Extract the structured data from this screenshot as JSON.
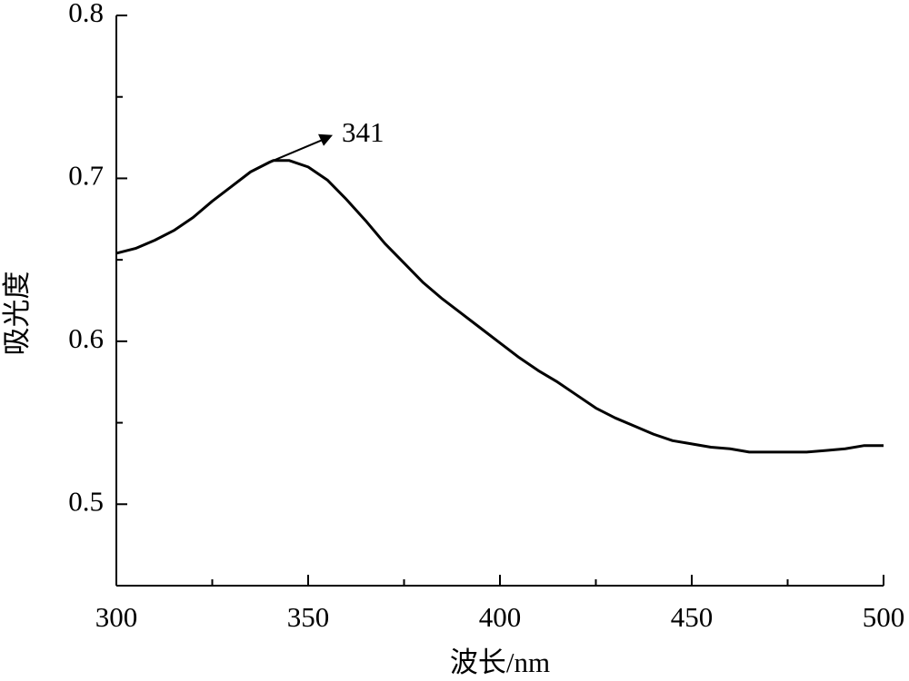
{
  "chart_data": {
    "type": "line",
    "x_label": "波长/nm",
    "y_label": "吸光度",
    "x": [
      300,
      305,
      310,
      315,
      320,
      325,
      330,
      335,
      340,
      341,
      345,
      350,
      355,
      360,
      365,
      370,
      375,
      380,
      385,
      390,
      395,
      400,
      405,
      410,
      415,
      420,
      425,
      430,
      435,
      440,
      445,
      450,
      455,
      460,
      465,
      470,
      475,
      480,
      485,
      490,
      495,
      500
    ],
    "values": [
      0.654,
      0.657,
      0.662,
      0.668,
      0.676,
      0.686,
      0.695,
      0.704,
      0.71,
      0.711,
      0.711,
      0.707,
      0.699,
      0.687,
      0.674,
      0.66,
      0.648,
      0.636,
      0.626,
      0.617,
      0.608,
      0.599,
      0.59,
      0.582,
      0.575,
      0.567,
      0.559,
      0.553,
      0.548,
      0.543,
      0.539,
      0.537,
      0.535,
      0.534,
      0.532,
      0.532,
      0.532,
      0.532,
      0.533,
      0.534,
      0.536,
      0.536
    ],
    "color": "#000000",
    "xlim": [
      300,
      500
    ],
    "xticks": [
      300,
      350,
      400,
      450,
      500
    ],
    "xminorticks": [
      325,
      375,
      425,
      475
    ],
    "ylim": [
      0.45,
      0.8
    ],
    "yticks": [
      0.5,
      0.6,
      0.7,
      0.8
    ],
    "yminorticks": [
      0.55,
      0.65,
      0.75
    ],
    "annotation": {
      "text": "341",
      "x": 341
    }
  }
}
